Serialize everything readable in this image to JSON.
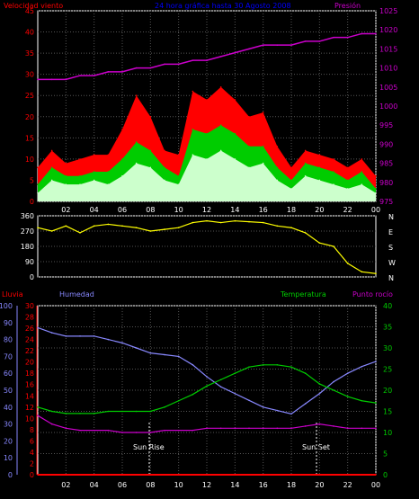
{
  "header": {
    "title": "24 hora gráfica hasta 30 Agosto 2008",
    "wind_label": "Velocidad viento",
    "pressure_label": "Presión"
  },
  "colors": {
    "wind_gust": "#ff0000",
    "wind_avg": "#00cc00",
    "wind_min": "#ccffcc",
    "pressure": "#cc00cc",
    "direction": "#ffff00",
    "humidity": "#8888ff",
    "temperature": "#00cc00",
    "dewpoint": "#cc00cc",
    "rain": "#ff0000",
    "axis": "#ffffff",
    "grid": "#555555"
  },
  "x_tick_labels": [
    "02",
    "04",
    "06",
    "08",
    "10",
    "12",
    "14",
    "16",
    "18",
    "20",
    "22",
    "00"
  ],
  "chart_data": [
    {
      "type": "line",
      "title": "24 hora gráfica hasta 30 Agosto 2008",
      "x": [
        0,
        1,
        2,
        3,
        4,
        5,
        6,
        7,
        8,
        9,
        10,
        11,
        12,
        13,
        14,
        15,
        16,
        17,
        18,
        19,
        20,
        21,
        22,
        23,
        24
      ],
      "x_tick_labels": [
        "02",
        "04",
        "06",
        "08",
        "10",
        "12",
        "14",
        "16",
        "18",
        "20",
        "22",
        "00"
      ],
      "ylabel_left": "Velocidad viento",
      "ylabel_right": "Presión",
      "ylim_left": [
        0,
        45
      ],
      "ylim_right": [
        975,
        1025
      ],
      "left_ticks": [
        0,
        5,
        10,
        15,
        20,
        25,
        30,
        35,
        40,
        45
      ],
      "right_ticks": [
        975,
        980,
        985,
        990,
        995,
        1000,
        1005,
        1010,
        1015,
        1020,
        1025
      ],
      "grid": true,
      "series": [
        {
          "name": "Velocidad viento",
          "axis": "left",
          "values": [
            8,
            12,
            9,
            10,
            11,
            11,
            17,
            25,
            20,
            12,
            11,
            26,
            24,
            27,
            24,
            20,
            21,
            13,
            8,
            12,
            11,
            10,
            8,
            10,
            6
          ]
        },
        {
          "name": "",
          "axis": "left",
          "values": [
            4,
            8,
            6,
            6,
            7,
            7,
            10,
            14,
            12,
            8,
            6,
            17,
            16,
            18,
            16,
            13,
            13,
            8,
            5,
            9,
            8,
            7,
            5,
            7,
            3
          ]
        },
        {
          "name": "",
          "axis": "left",
          "values": [
            2,
            5,
            4,
            4,
            5,
            4,
            6,
            9,
            8,
            5,
            4,
            11,
            10,
            12,
            10,
            8,
            9,
            5,
            3,
            6,
            5,
            4,
            3,
            4,
            2
          ]
        },
        {
          "name": "Presión",
          "axis": "right",
          "values": [
            1007,
            1007,
            1007,
            1008,
            1008,
            1009,
            1009,
            1010,
            1010,
            1011,
            1011,
            1012,
            1012,
            1013,
            1014,
            1015,
            1016,
            1016,
            1016,
            1017,
            1017,
            1018,
            1018,
            1019,
            1019
          ]
        }
      ]
    },
    {
      "type": "line",
      "x": [
        0,
        1,
        2,
        3,
        4,
        5,
        6,
        7,
        8,
        9,
        10,
        11,
        12,
        13,
        14,
        15,
        16,
        17,
        18,
        19,
        20,
        21,
        22,
        23,
        24
      ],
      "left_ticks": [
        0,
        90,
        180,
        270,
        360
      ],
      "right_labels": [
        "N",
        "W",
        "S",
        "E",
        "N"
      ],
      "ylim": [
        0,
        360
      ],
      "grid": true,
      "series": [
        {
          "name": "",
          "values": [
            290,
            270,
            300,
            260,
            300,
            310,
            300,
            290,
            270,
            280,
            290,
            320,
            330,
            320,
            330,
            325,
            320,
            300,
            290,
            260,
            200,
            180,
            80,
            30,
            20
          ]
        }
      ]
    },
    {
      "type": "line",
      "x": [
        0,
        1,
        2,
        3,
        4,
        5,
        6,
        7,
        8,
        9,
        10,
        11,
        12,
        13,
        14,
        15,
        16,
        17,
        18,
        19,
        20,
        21,
        22,
        23,
        24
      ],
      "x_tick_labels": [
        "02",
        "04",
        "06",
        "08",
        "10",
        "12",
        "14",
        "16",
        "18",
        "20",
        "22",
        "00"
      ],
      "ylabel_left_rain": "Lluvia",
      "ylabel_left_hum": "Humedad",
      "ylabel_right_temp": "Temperatura",
      "ylabel_right_dew": "Punto rocío",
      "rain_ticks": [
        0,
        2,
        4,
        6,
        8,
        10,
        12,
        14,
        16,
        18,
        20,
        22,
        24,
        26,
        28,
        30
      ],
      "humidity_ticks": [
        0,
        10,
        20,
        30,
        40,
        50,
        60,
        70,
        80,
        90,
        100
      ],
      "temp_ticks": [
        0,
        5,
        10,
        15,
        20,
        25,
        30,
        35,
        40
      ],
      "ylim_humidity": [
        0,
        100
      ],
      "ylim_temp": [
        0,
        40
      ],
      "ylim_rain": [
        0,
        30
      ],
      "annotations": [
        "Sun Rise",
        "Sun Set"
      ],
      "grid": true,
      "series": [
        {
          "name": "Humedad",
          "axis": "humidity",
          "values": [
            87,
            84,
            82,
            82,
            82,
            80,
            78,
            75,
            72,
            71,
            70,
            65,
            58,
            52,
            48,
            44,
            40,
            38,
            36,
            42,
            48,
            55,
            60,
            64,
            67
          ]
        },
        {
          "name": "Temperatura",
          "axis": "temp",
          "values": [
            16,
            15,
            14.5,
            14.5,
            14.5,
            15,
            15,
            15,
            15,
            16,
            17.5,
            19,
            21,
            22.5,
            24,
            25.5,
            26,
            26,
            25.5,
            24,
            21.5,
            20,
            18.5,
            17.5,
            17
          ]
        },
        {
          "name": "Punto rocío",
          "axis": "temp",
          "values": [
            14,
            12,
            11,
            10.5,
            10.5,
            10.5,
            10,
            10,
            10,
            10.5,
            10.5,
            10.5,
            11,
            11,
            11,
            11,
            11,
            11,
            11,
            11.5,
            12,
            11.5,
            11,
            11,
            11
          ]
        },
        {
          "name": "Lluvia",
          "axis": "rain",
          "values": [
            0,
            0,
            0,
            0,
            0,
            0,
            0,
            0,
            0,
            0,
            0,
            0,
            0,
            0,
            0,
            0,
            0,
            0,
            0,
            0,
            0,
            0,
            0,
            0,
            0
          ]
        }
      ]
    }
  ]
}
